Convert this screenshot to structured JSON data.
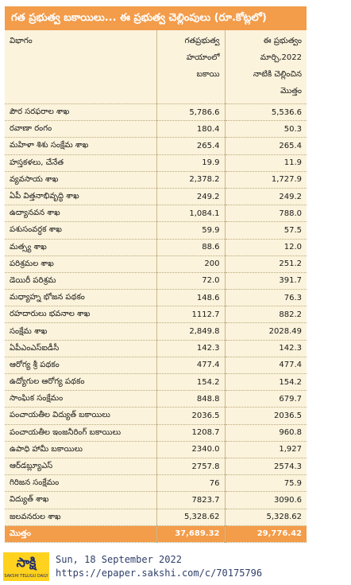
{
  "header": {
    "title": "గత ప్రభుత్వ బకాయిలు... ఈ ప్రభుత్వ చెల్లింపులు (రూ.కోట్లలో)"
  },
  "table": {
    "columns": [
      [
        "విభాగం"
      ],
      [
        "గతప్రభుత్వ",
        "హయాంలో",
        "బకాయి"
      ],
      [
        "ఈ ప్రభుత్వం",
        "మార్చి,2022",
        "నాటికి చెల్లించిన",
        "మొత్తం"
      ]
    ],
    "rows": [
      [
        "పౌర సరఫరాల శాఖ",
        "5,786.6",
        "5,536.6"
      ],
      [
        "రవాణా రంగం",
        "180.4",
        "50.3"
      ],
      [
        "మహిళా శిశు సంక్షేమ శాఖ",
        "265.4",
        "265.4"
      ],
      [
        "హస్తకళలు, చేనేత",
        "19.9",
        "11.9"
      ],
      [
        "వ్యవసాయ శాఖ",
        "2,378.2",
        "1,727.9"
      ],
      [
        "ఏపీ విత్తనాభివృద్ధి శాఖ",
        "249.2",
        "249.2"
      ],
      [
        "ఉద్యానవన శాఖ",
        "1,084.1",
        "788.0"
      ],
      [
        "పశుసంవర్ధక శాఖ",
        "59.9",
        "57.5"
      ],
      [
        "మత్స్య శాఖ",
        "88.6",
        "12.0"
      ],
      [
        "పరిశ్రమల శాఖ",
        "200",
        "251.2"
      ],
      [
        "డెయిరీ పరిశ్రమ",
        "72.0",
        "391.7"
      ],
      [
        "మధ్యాహ్న భోజన పథకం",
        "148.6",
        "76.3"
      ],
      [
        "రహదారులు భవనాల శాఖ",
        "1112.7",
        "882.2"
      ],
      [
        "సంక్షేమ శాఖ",
        "2,849.8",
        "2028.49"
      ],
      [
        "ఏపీఎంఎస్ఐడీసీ",
        "142.3",
        "142.3"
      ],
      [
        "ఆరోగ్య శ్రీ పథకం",
        "477.4",
        "477.4"
      ],
      [
        "ఉద్యోగుల ఆరోగ్య పథకం",
        "154.2",
        "154.2"
      ],
      [
        "సాంఘిక సంక్షేమం",
        "848.8",
        "679.7"
      ],
      [
        "పంచాయతీల విద్యుత్ బకాయిలు",
        "2036.5",
        "2036.5"
      ],
      [
        "పంచాయతీల ఇంజనీరింగ్ బకాయిలు",
        "1208.7",
        "960.8"
      ],
      [
        "ఉపాధి హామీ బకాయిలు",
        "2340.0",
        "1,927"
      ],
      [
        "ఆర్‌డబ్ల్యూఎస్",
        "2757.8",
        "2574.3"
      ],
      [
        "గిరిజన సంక్షేమం",
        "76",
        "75.9"
      ],
      [
        "విద్యుత్ శాఖ",
        "7823.7",
        "3090.6"
      ],
      [
        "జలవనరుల శాఖ",
        "5,328.62",
        "5,328.62"
      ]
    ],
    "total": [
      "మొత్తం",
      "37,689.32",
      "29,776.42"
    ]
  },
  "footer": {
    "logo": "సాక్షి",
    "logo_subtitle": "SAKSHI TELUGU DAILY",
    "date": "Sun, 18 September 2022",
    "url": "https://epaper.sakshi.com/c/70175796"
  }
}
